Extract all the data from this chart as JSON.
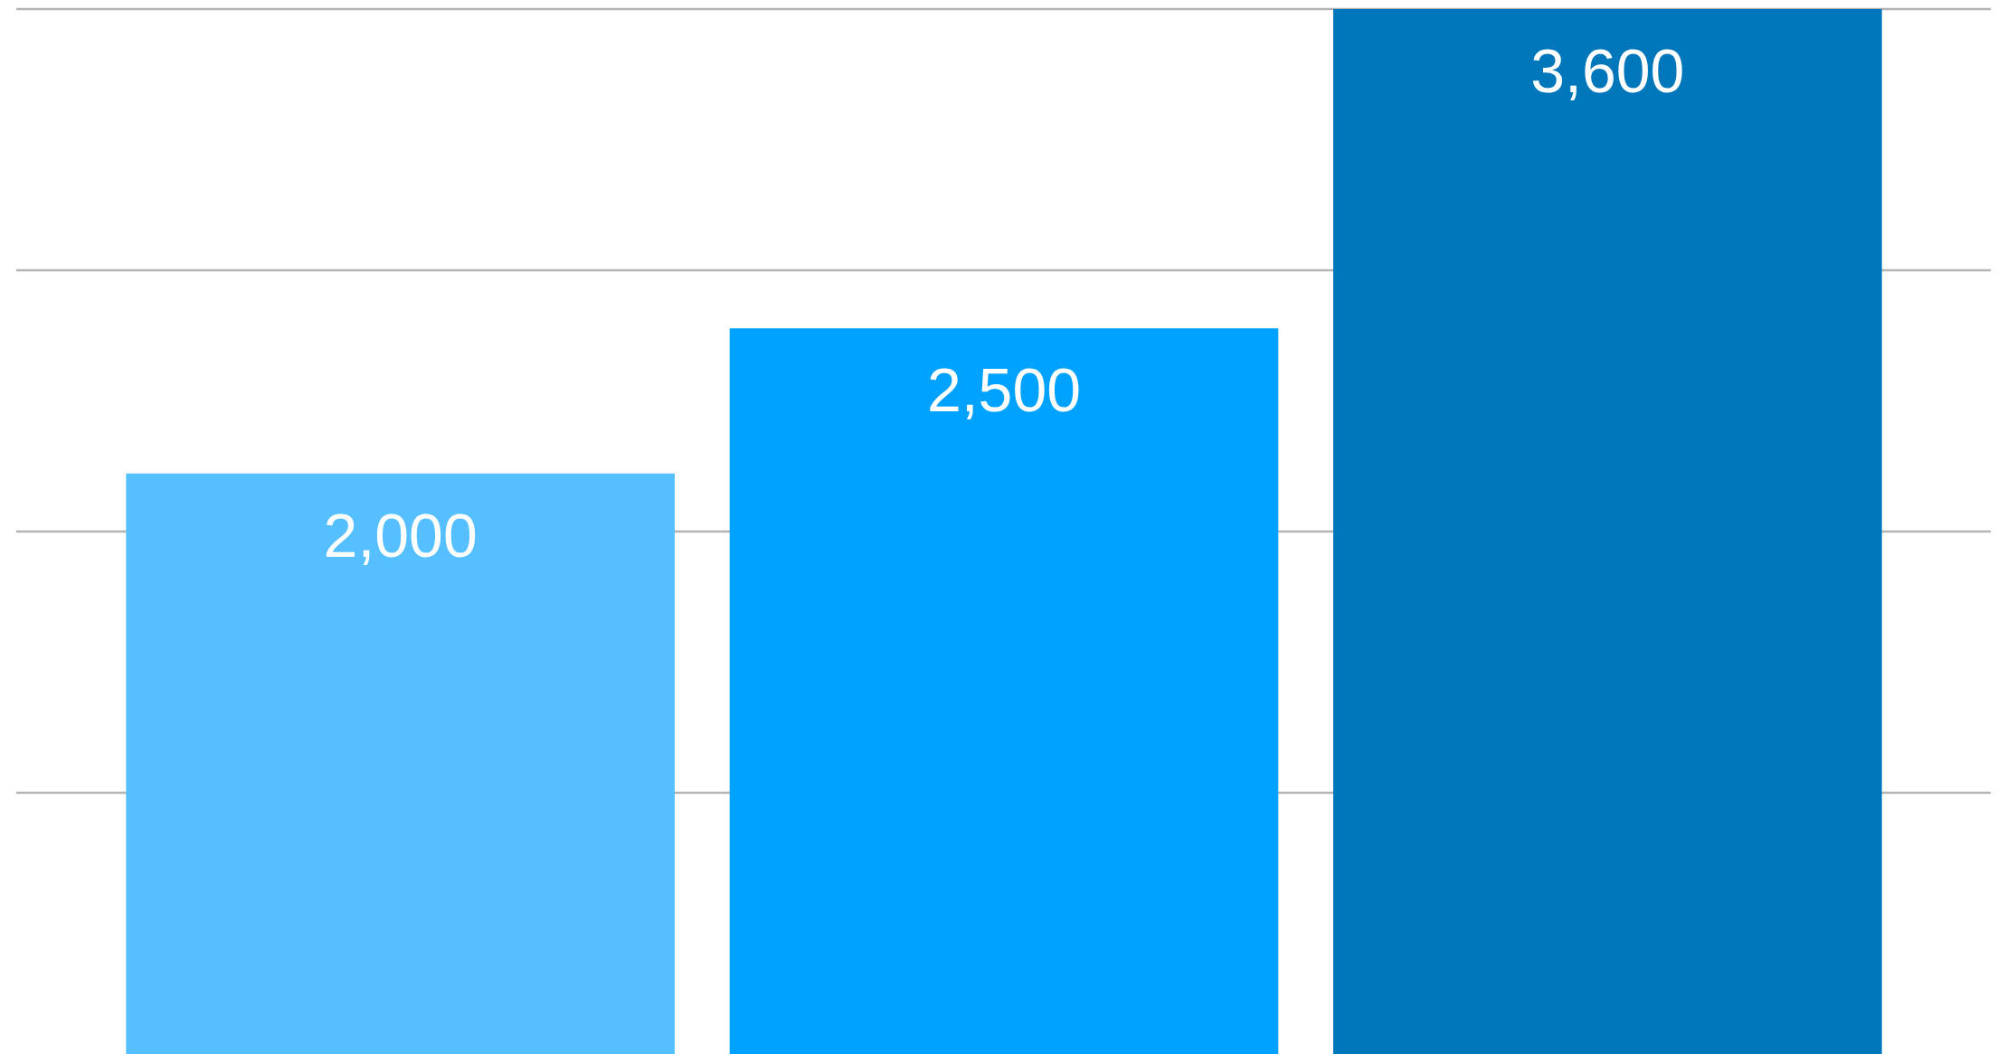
{
  "chart_data": {
    "type": "bar",
    "categories": [
      null,
      null,
      null
    ],
    "values": [
      2000,
      2500,
      3600
    ],
    "value_labels": [
      "2,000",
      "2,500",
      "3,600"
    ],
    "colors": [
      "#56bfff",
      "#00a2ff",
      "#0076bb"
    ],
    "grid": "y"
  }
}
